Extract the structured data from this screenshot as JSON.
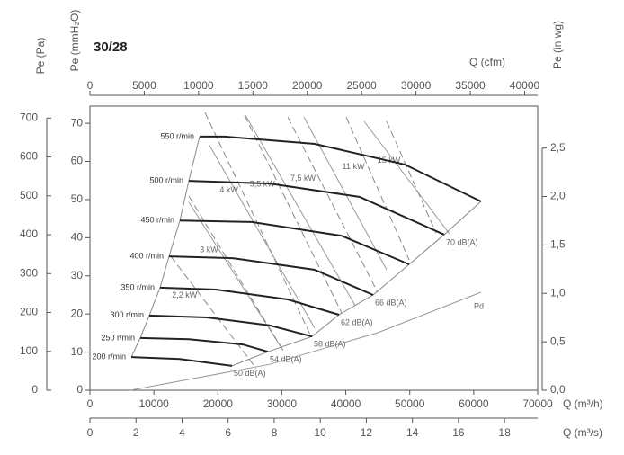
{
  "chart_data": {
    "type": "fan-curve",
    "title": "30/28",
    "x": {
      "label": "Q (m³/h)",
      "lim": [
        0,
        70000
      ],
      "ticks": [
        0,
        10000,
        20000,
        30000,
        40000,
        50000,
        60000,
        70000
      ]
    },
    "x_cfm": {
      "label": "Q (cfm)",
      "lim": [
        0,
        41200
      ],
      "ticks": [
        0,
        5000,
        10000,
        15000,
        20000,
        25000,
        30000,
        35000,
        40000
      ]
    },
    "x_m3s": {
      "label": "Q (m³/s)",
      "lim": [
        0,
        19.44
      ],
      "ticks": [
        0,
        2,
        4,
        6,
        8,
        10,
        12,
        14,
        16,
        18
      ]
    },
    "y": {
      "label": "Pe (mmH₂O)",
      "lim": [
        0,
        74.5
      ],
      "ticks": [
        0,
        10,
        20,
        30,
        40,
        50,
        60,
        70
      ]
    },
    "y_pa": {
      "label": "Pe (Pa)",
      "lim": [
        0,
        730.8
      ],
      "ticks": [
        0,
        100,
        200,
        300,
        400,
        500,
        600,
        700
      ]
    },
    "y_inwg": {
      "label": "Pe (in wg)",
      "lim": [
        0,
        2.933
      ],
      "ticks": [
        {
          "value": 0,
          "label": "0,0"
        },
        {
          "value": 0.5,
          "label": "0,5"
        },
        {
          "value": 1,
          "label": "1,0"
        },
        {
          "value": 1.5,
          "label": "1,5"
        },
        {
          "value": 2,
          "label": "2,0"
        },
        {
          "value": 2.5,
          "label": "2,5"
        }
      ]
    },
    "speed_curves": [
      {
        "name": "550 r/min",
        "color": "#222",
        "x": [
          17150,
          21080,
          35140,
          49200,
          61140
        ],
        "values": [
          66.5,
          66.5,
          64.6,
          59.2,
          49.5
        ]
      },
      {
        "name": "500 r/min",
        "color": "#222",
        "noise": "70 dB(A)",
        "x": [
          15460,
          28110,
          42170,
          55380
        ],
        "values": [
          54.9,
          54.2,
          50.7,
          40.8
        ]
      },
      {
        "name": "450 r/min",
        "color": "#222",
        "x": [
          14060,
          25300,
          39360,
          49900
        ],
        "values": [
          44.5,
          44.1,
          40.5,
          33.0
        ]
      },
      {
        "name": "400 r/min",
        "color": "#222",
        "noise": "66 dB(A)",
        "x": [
          12370,
          22490,
          35140,
          44280
        ],
        "values": [
          35.1,
          34.6,
          31.6,
          25.0
        ]
      },
      {
        "name": "350 r/min",
        "color": "#222",
        "noise": "62 dB(A)",
        "x": [
          10960,
          19680,
          30920,
          38940
        ],
        "values": [
          26.9,
          26.4,
          23.8,
          19.8
        ]
      },
      {
        "name": "300 r/min",
        "color": "#222",
        "noise": "58 dB(A)",
        "x": [
          9280,
          18270,
          28110,
          34720
        ],
        "values": [
          19.6,
          19.1,
          17.0,
          14.1
        ]
      },
      {
        "name": "250 r/min",
        "color": "#222",
        "noise": "54 dB(A)",
        "x": [
          7870,
          15460,
          23900,
          27830
        ],
        "values": [
          13.7,
          13.4,
          12.0,
          10.1
        ]
      },
      {
        "name": "200 r/min",
        "color": "#222",
        "noise": "50 dB(A)",
        "x": [
          6470,
          14060,
          22210
        ],
        "values": [
          8.7,
          8.2,
          6.4
        ]
      }
    ],
    "power_lines": [
      {
        "name": "15 kW",
        "color": "#888",
        "x": [
          46390,
          54120
        ],
        "values": [
          70.5,
          41.2
        ]
      },
      {
        "name": "11 kW",
        "color": "#888",
        "x": [
          40060,
          49900
        ],
        "values": [
          71.6,
          34.2
        ]
      },
      {
        "name": "7,5 kW",
        "color": "#888",
        "x": [
          30920,
          44980
        ],
        "values": [
          71.6,
          25.7
        ]
      },
      {
        "name": "5,5 kW",
        "color": "#888",
        "x": [
          24180,
          39360
        ],
        "values": [
          72.1,
          20.3
        ]
      },
      {
        "name": "4 kW",
        "color": "#888",
        "x": [
          17990,
          34440
        ],
        "values": [
          72.8,
          14.6
        ]
      },
      {
        "name": "3 kW",
        "color": "#888",
        "x": [
          15460,
          30220
        ],
        "values": [
          50.9,
          10.4
        ]
      },
      {
        "name": "2,2 kW",
        "color": "#888",
        "x": [
          12650,
          26000
        ],
        "values": [
          35.1,
          5.7
        ]
      }
    ],
    "efficiency_lines": [
      {
        "color": "#999",
        "x": [
          42870,
          56220
        ],
        "values": [
          70.5,
          41.0
        ]
      },
      {
        "color": "#999",
        "x": [
          33450,
          46390
        ],
        "values": [
          71.6,
          31.6
        ]
      },
      {
        "color": "#999",
        "x": [
          24320,
          41470
        ],
        "values": [
          72.1,
          22.2
        ]
      },
      {
        "color": "#999",
        "x": [
          18550,
          35140
        ],
        "values": [
          64.6,
          16.3
        ]
      },
      {
        "color": "#999",
        "x": [
          15460,
          30220
        ],
        "values": [
          49.3,
          10.4
        ]
      }
    ],
    "dynamic_pressure": {
      "name": "Pd",
      "color": "#999",
      "x": [
        6330,
        28110,
        44980,
        61140
      ],
      "values": [
        0,
        6.8,
        15.1,
        25.7
      ]
    }
  }
}
